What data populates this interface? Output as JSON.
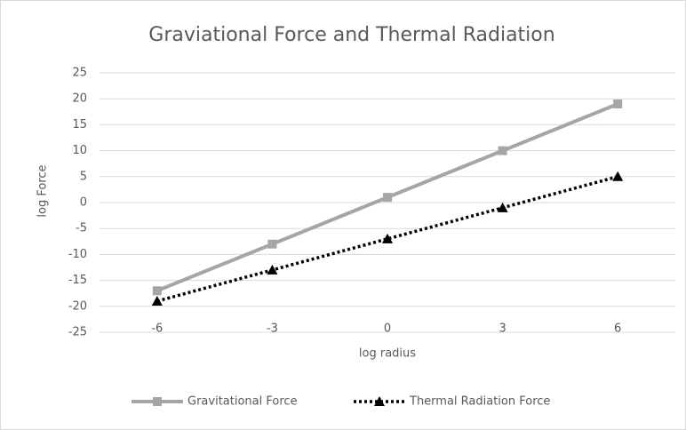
{
  "chart_data": {
    "type": "line",
    "title": "Graviational Force and Thermal Radiation",
    "x_label": "log radius",
    "y_label": "log Force",
    "categories": [
      "-6",
      "-3",
      "0",
      "3",
      "6"
    ],
    "series": [
      {
        "name": "Gravitational Force",
        "color": "#a5a5a5",
        "values": [
          -17,
          -8,
          1,
          10,
          19
        ]
      },
      {
        "name": "Thermal Radiation Force",
        "color": "#000000",
        "values": [
          -19,
          -13,
          -7,
          -1,
          5
        ]
      }
    ],
    "ylim": [
      -25,
      25
    ],
    "yticks": [
      -25,
      -20,
      -15,
      -10,
      -5,
      0,
      5,
      10,
      15,
      20,
      25
    ],
    "grid": true,
    "legend": "bottom"
  }
}
